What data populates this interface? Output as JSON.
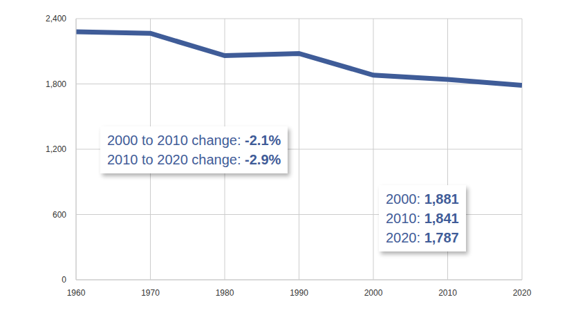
{
  "chart_data": {
    "type": "line",
    "x": [
      1960,
      1970,
      1980,
      1990,
      2000,
      2010,
      2020
    ],
    "values": [
      2280,
      2265,
      2060,
      2080,
      1881,
      1841,
      1787
    ],
    "color": "#3f5c98",
    "xlim": [
      1960,
      2020
    ],
    "xticks": [
      1960,
      1970,
      1980,
      1990,
      2000,
      2010,
      2020
    ],
    "ylim": [
      0,
      2400
    ],
    "yticks": [
      0,
      600,
      {
        "value": 1200,
        "label": "1,200"
      },
      {
        "value": 1800,
        "label": "1,800"
      },
      {
        "value": 2400,
        "label": "2,400"
      }
    ],
    "grid": true,
    "annotations": [
      {
        "lines": [
          {
            "text": "2000 to 2010 change:",
            "value": "-2.1%"
          },
          {
            "text": "2010 to 2020 change:",
            "value": "-2.9%"
          }
        ]
      },
      {
        "lines": [
          {
            "text": "2000:",
            "value": "1,881"
          },
          {
            "text": "2010:",
            "value": "1,841"
          },
          {
            "text": "2020:",
            "value": "1,787"
          }
        ]
      }
    ]
  }
}
